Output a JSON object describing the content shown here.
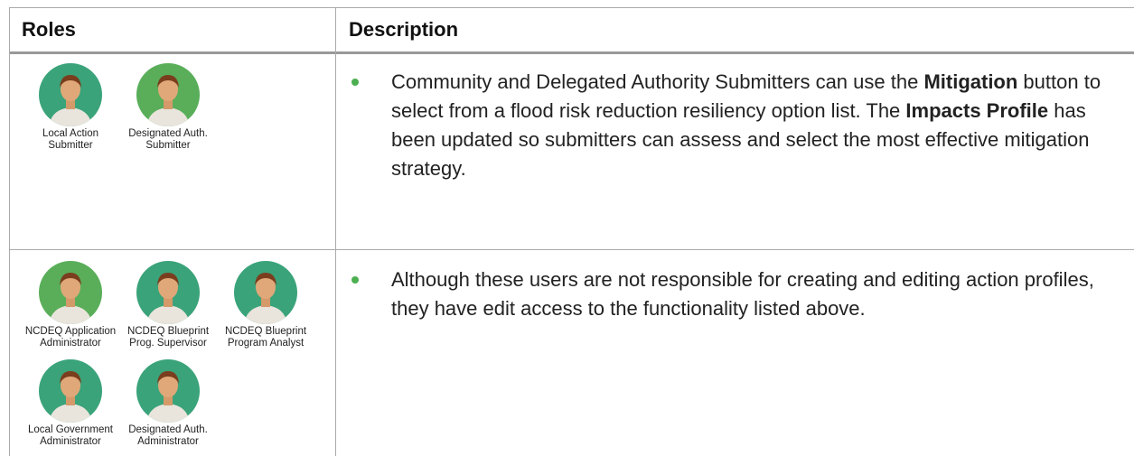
{
  "table": {
    "headers": [
      "Roles",
      "Description"
    ],
    "rows": [
      {
        "roles": [
          {
            "label": [
              "Local Action",
              "Submitter"
            ],
            "avatar_color": "#3aa37a"
          },
          {
            "label": [
              "Designated Auth.",
              "Submitter"
            ],
            "avatar_color": "#5aae5a"
          }
        ],
        "description": [
          {
            "text": "Community and Delegated Authority Submitters can use the ",
            "bold": false
          },
          {
            "text": "Mitigation",
            "bold": true
          },
          {
            "text": " button to select from a flood risk reduction resiliency option list. The ",
            "bold": false
          },
          {
            "text": "Impacts Profile",
            "bold": true
          },
          {
            "text": " has been updated so submitters can assess and select the most effective mitigation strategy.",
            "bold": false
          }
        ]
      },
      {
        "roles": [
          {
            "label": [
              "NCDEQ Application",
              "Administrator"
            ],
            "avatar_color": "#5aae5a"
          },
          {
            "label": [
              "NCDEQ Blueprint",
              "Prog. Supervisor"
            ],
            "avatar_color": "#3aa37a"
          },
          {
            "label": [
              "NCDEQ Blueprint",
              "Program Analyst"
            ],
            "avatar_color": "#3aa37a"
          },
          {
            "label": [
              "Local Government",
              "Administrator"
            ],
            "avatar_color": "#3aa37a"
          },
          {
            "label": [
              "Designated Auth.",
              "Administrator"
            ],
            "avatar_color": "#3aa37a"
          }
        ],
        "description": [
          {
            "text": "Although these users are not responsible for creating and editing action profiles, they have edit access to the functionality listed above.",
            "bold": false
          }
        ]
      }
    ]
  }
}
